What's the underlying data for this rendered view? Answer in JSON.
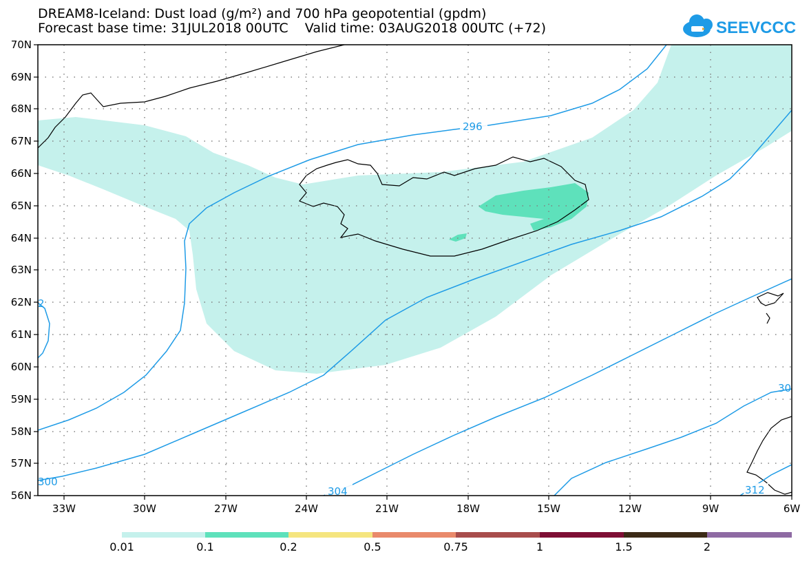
{
  "header": {
    "title_line1": "DREAM8-Iceland: Dust load (g/m²) and 700 hPa geopotential (gpdm)",
    "title_line2": "Forecast base time: 31JUL2018 00UTC    Valid time: 03AUG2018 00UTC (+72)"
  },
  "logo": {
    "text": "SEEVCCC",
    "icon": "cloud-icon",
    "color": "#1e9be6"
  },
  "axes": {
    "lat_labels": [
      "70N",
      "69N",
      "68N",
      "67N",
      "66N",
      "65N",
      "64N",
      "63N",
      "62N",
      "61N",
      "60N",
      "59N",
      "58N",
      "57N",
      "56N"
    ],
    "lon_labels": [
      "33W",
      "30W",
      "27W",
      "24W",
      "21W",
      "18W",
      "15W",
      "12W",
      "9W",
      "6W"
    ]
  },
  "contours": {
    "color": "#1e9be6",
    "labels": [
      "296",
      "304",
      "312",
      "300",
      "30",
      "2"
    ]
  },
  "colorbar": {
    "colors": [
      "#c5f1ec",
      "#5ee1bb",
      "#f5e57f",
      "#e98a6b",
      "#a84d4c",
      "#7e0f35",
      "#3c2b17",
      "#8e6aa3"
    ],
    "labels": [
      "0.01",
      "0.1",
      "0.2",
      "0.5",
      "0.75",
      "1",
      "1.5",
      "2"
    ]
  },
  "colors": {
    "dust_low": "#c5f1ec",
    "dust_mid": "#5ee1bb",
    "contour": "#1e9be6"
  }
}
